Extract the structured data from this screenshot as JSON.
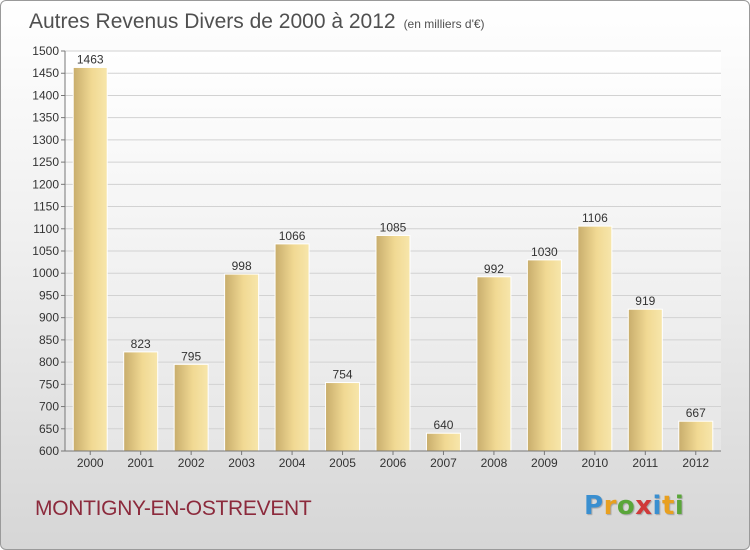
{
  "title": "Autres Revenus Divers de 2000 à 2012",
  "subtitle": "(en milliers d'€)",
  "commune": "MONTIGNY-EN-OSTREVENT",
  "brand": {
    "text": "Proxiti",
    "letters": [
      "P",
      "r",
      "o",
      "x",
      "i",
      "t",
      "i"
    ],
    "colors": [
      "#3a8fd0",
      "#e8a020",
      "#5aa63a",
      "#d03a3a",
      "#3a8fd0",
      "#e8a020",
      "#5aa63a"
    ]
  },
  "colors": {
    "title": "#505050",
    "commune": "#8c2a3c",
    "bar_light": "#f4df9a",
    "bar_dark": "#c8ad6c"
  },
  "chart_data": {
    "type": "bar",
    "categories": [
      "2000",
      "2001",
      "2002",
      "2003",
      "2004",
      "2005",
      "2006",
      "2007",
      "2008",
      "2009",
      "2010",
      "2011",
      "2012"
    ],
    "values": [
      1463,
      823,
      795,
      998,
      1066,
      754,
      1085,
      640,
      992,
      1030,
      1106,
      919,
      667
    ],
    "data_labels": [
      "1463",
      "823",
      "795",
      "998",
      "1066",
      "754",
      "1085",
      "640",
      "992",
      "1030",
      "1106",
      "919",
      "667"
    ],
    "title": "Autres Revenus Divers de 2000 à 2012",
    "subtitle": "(en milliers d'€)",
    "xlabel": "",
    "ylabel": "",
    "ylim": [
      600,
      1500
    ],
    "yticks": [
      600,
      650,
      700,
      750,
      800,
      850,
      900,
      950,
      1000,
      1050,
      1100,
      1150,
      1200,
      1250,
      1300,
      1350,
      1400,
      1450,
      1500
    ],
    "grid": true,
    "legend": "none"
  }
}
